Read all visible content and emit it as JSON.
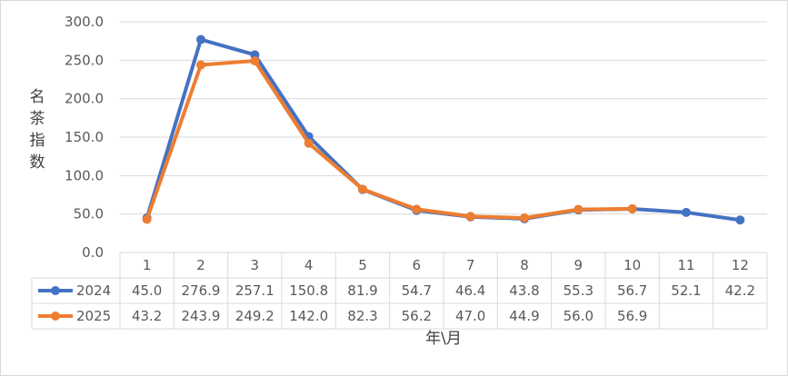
{
  "chart_data": {
    "type": "line",
    "title": "",
    "xlabel": "年\\月",
    "ylabel": "名茶指数",
    "ylim": [
      0,
      300
    ],
    "yticks": [
      "0.0",
      "50.0",
      "100.0",
      "150.0",
      "200.0",
      "250.0",
      "300.0"
    ],
    "categories": [
      "1",
      "2",
      "3",
      "4",
      "5",
      "6",
      "7",
      "8",
      "9",
      "10",
      "11",
      "12"
    ],
    "grid": true,
    "legend": "data-table-left",
    "series": [
      {
        "name": "2024",
        "color": "#4472C4",
        "values": [
          45.0,
          276.9,
          257.1,
          150.8,
          81.9,
          54.7,
          46.4,
          43.8,
          55.3,
          56.7,
          52.1,
          42.2
        ],
        "labels": [
          "45.0",
          "276.9",
          "257.1",
          "150.8",
          "81.9",
          "54.7",
          "46.4",
          "43.8",
          "55.3",
          "56.7",
          "52.1",
          "42.2"
        ]
      },
      {
        "name": "2025",
        "color": "#ED7D31",
        "values": [
          43.2,
          243.9,
          249.2,
          142.0,
          82.3,
          56.2,
          47.0,
          44.9,
          56.0,
          56.9,
          null,
          null
        ],
        "labels": [
          "43.2",
          "243.9",
          "249.2",
          "142.0",
          "82.3",
          "56.2",
          "47.0",
          "44.9",
          "56.0",
          "56.9",
          "",
          ""
        ]
      }
    ]
  }
}
